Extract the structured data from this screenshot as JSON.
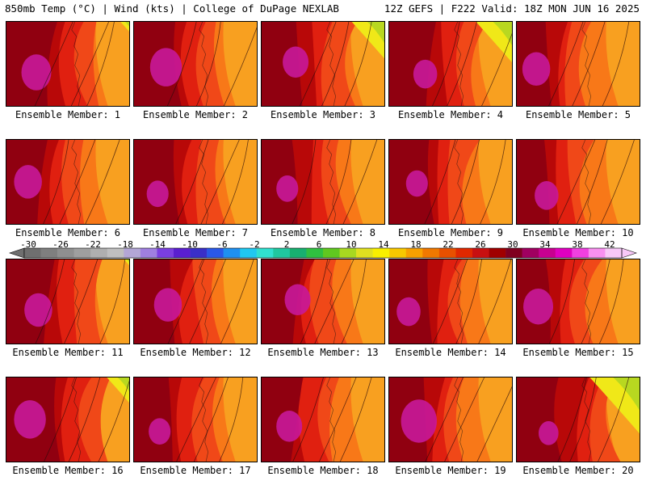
{
  "header": {
    "left": "850mb Temp (°C) | Wind (kts) | College of DuPage NEXLAB",
    "right": "12Z GEFS | F222 Valid: 18Z MON JUN 16 2025"
  },
  "members": [
    {
      "label": "Ensemble Member: 1",
      "warm_core": 0.75,
      "west_bias": 0.6,
      "green_ne": 0.15
    },
    {
      "label": "Ensemble Member: 2",
      "warm_core": 0.8,
      "west_bias": 0.55,
      "green_ne": 0.0
    },
    {
      "label": "Ensemble Member: 3",
      "warm_core": 0.65,
      "west_bias": 0.55,
      "green_ne": 0.5
    },
    {
      "label": "Ensemble Member: 4",
      "warm_core": 0.6,
      "west_bias": 0.6,
      "green_ne": 0.55
    },
    {
      "label": "Ensemble Member: 5",
      "warm_core": 0.7,
      "west_bias": 0.4,
      "green_ne": 0.0
    },
    {
      "label": "Ensemble Member: 6",
      "warm_core": 0.7,
      "west_bias": 0.45,
      "green_ne": 0.0
    },
    {
      "label": "Ensemble Member: 7",
      "warm_core": 0.55,
      "west_bias": 0.55,
      "green_ne": 0.0
    },
    {
      "label": "Ensemble Member: 8",
      "warm_core": 0.55,
      "west_bias": 0.5,
      "green_ne": 0.0
    },
    {
      "label": "Ensemble Member: 9",
      "warm_core": 0.55,
      "west_bias": 0.5,
      "green_ne": 0.0
    },
    {
      "label": "Ensemble Member: 10",
      "warm_core": 0.6,
      "west_bias": 0.4,
      "green_ne": 0.0
    },
    {
      "label": "Ensemble Member: 11",
      "warm_core": 0.7,
      "west_bias": 0.6,
      "green_ne": 0.1
    },
    {
      "label": "Ensemble Member: 12",
      "warm_core": 0.7,
      "west_bias": 0.5,
      "green_ne": 0.0
    },
    {
      "label": "Ensemble Member: 13",
      "warm_core": 0.65,
      "west_bias": 0.45,
      "green_ne": 0.0
    },
    {
      "label": "Ensemble Member: 14",
      "warm_core": 0.6,
      "west_bias": 0.5,
      "green_ne": 0.0
    },
    {
      "label": "Ensemble Member: 15",
      "warm_core": 0.75,
      "west_bias": 0.45,
      "green_ne": 0.0
    },
    {
      "label": "Ensemble Member: 16",
      "warm_core": 0.8,
      "west_bias": 0.65,
      "green_ne": 0.35
    },
    {
      "label": "Ensemble Member: 17",
      "warm_core": 0.55,
      "west_bias": 0.5,
      "green_ne": 0.0
    },
    {
      "label": "Ensemble Member: 18",
      "warm_core": 0.65,
      "west_bias": 0.45,
      "green_ne": 0.0
    },
    {
      "label": "Ensemble Member: 19",
      "warm_core": 0.9,
      "west_bias": 0.45,
      "green_ne": 0.0
    },
    {
      "label": "Ensemble Member: 20",
      "warm_core": 0.5,
      "west_bias": 0.7,
      "green_ne": 0.75
    }
  ],
  "colorbar": {
    "labels": [
      "-30",
      "-26",
      "-22",
      "-18",
      "-14",
      "-10",
      "-6",
      "-2",
      "2",
      "6",
      "10",
      "14",
      "18",
      "22",
      "26",
      "30",
      "34",
      "38",
      "42"
    ],
    "colors": [
      "#6f6f6f",
      "#7f7f7f",
      "#8f8f8f",
      "#9f9f9f",
      "#afafaf",
      "#bfbfbf",
      "#b3a6d6",
      "#9f7fe0",
      "#7a3fe0",
      "#5a1fd0",
      "#3a2fc8",
      "#2a58e8",
      "#1e90f0",
      "#20c8f0",
      "#30e0d0",
      "#20c8a0",
      "#18b070",
      "#30c040",
      "#60c820",
      "#a8d820",
      "#e0e020",
      "#f8f000",
      "#f8c800",
      "#f8a000",
      "#f07800",
      "#e85000",
      "#e02800",
      "#c81010",
      "#a00000",
      "#800020",
      "#a00060",
      "#c80090",
      "#e000c0",
      "#f040e0",
      "#f890f0",
      "#f8c8f8"
    ]
  },
  "temp_palette": {
    "magenta": "#c8189a",
    "purple_dark": "#8a1060",
    "maroon": "#900010",
    "dark_red": "#b80808",
    "red": "#e02010",
    "red_orange": "#f04818",
    "orange": "#f87818",
    "light_orange": "#f8a020",
    "gold": "#f8c818",
    "yellow": "#f0e818",
    "green_yellow": "#b8d820",
    "green": "#80c020"
  }
}
